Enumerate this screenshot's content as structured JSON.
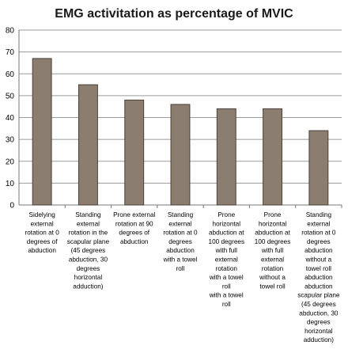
{
  "chart_data": {
    "type": "bar",
    "title": "EMG activitation as percentage of MVIC",
    "xlabel": "",
    "ylabel": "",
    "ylim": [
      0,
      80
    ],
    "yticks": [
      0,
      10,
      20,
      30,
      40,
      50,
      60,
      70,
      80
    ],
    "grid": true,
    "legend": "none",
    "bar_color": "#8B7D6F",
    "bar_stroke": "#4a4039",
    "categories": [
      "Sidelying external rotation at 0 degrees of abduction",
      "Standing external rotation in the scapular plane (45 degrees abduction, 30 degrees horizontal adduction)",
      "Prone external rotation at 90 degrees of abduction",
      "Standing external rotation at 0 degrees abduction with a towel roll",
      "Prone horizontal abduction at 100 degrees with full external rotation with a towel roll with a towel roll",
      "Prone horizontal abduction at 100 degrees with full external rotation without a towel roll",
      "Standing external rotation at 0 degrees abduction without a towel roll abduction scapular plane (45 degrees abduction, 30 degrees horizontal adduction)"
    ],
    "category_label_lines": [
      [
        "Sidelying",
        "external",
        "rotation at 0",
        "degrees of",
        "abduction"
      ],
      [
        "Standing",
        "external",
        "rotation in the",
        "scapular plane",
        "(45 degrees",
        "abduction, 30",
        "degrees",
        "horizontal",
        "adduction)"
      ],
      [
        "Prone external",
        "rotation at 90",
        "degrees of",
        "abduction"
      ],
      [
        "Standing",
        "external",
        "rotation at 0",
        "degrees",
        "abduction",
        "with a towel",
        "roll"
      ],
      [
        "Prone",
        "horizontal",
        "abduction at",
        "100 degrees",
        "with full",
        "external",
        "rotation",
        "with a towel",
        "roll",
        "with a towel",
        "roll"
      ],
      [
        "Prone",
        "horizontal",
        "abduction at",
        "100 degrees",
        "with full",
        "external",
        "rotation",
        "without a",
        "towel roll"
      ],
      [
        "Standing",
        "external",
        "rotation at 0",
        "degrees",
        "abduction",
        "without a",
        "towel roll",
        "abduction",
        "abduction",
        "scapular plane",
        "(45 degrees",
        "abduction, 30",
        "degrees",
        "horizontal",
        "adduction)"
      ]
    ],
    "values": [
      67,
      55,
      48,
      46,
      44,
      44,
      34
    ]
  }
}
